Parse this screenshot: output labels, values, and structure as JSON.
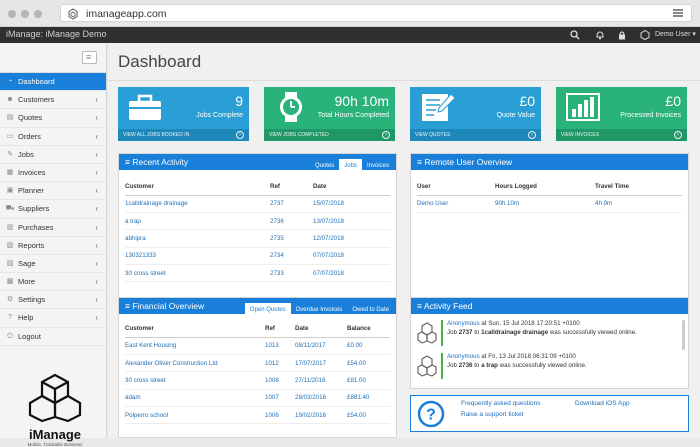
{
  "browser": {
    "url": "imanageapp.com"
  },
  "app": {
    "title": "iManage: iManage Demo",
    "user": "Demo User ▾"
  },
  "page": {
    "title": "Dashboard"
  },
  "sidebar": {
    "items": [
      {
        "label": "Dashboard",
        "icon": "dashboard-icon",
        "chevron": ""
      },
      {
        "label": "Customers",
        "icon": "customers-icon",
        "chevron": "‹"
      },
      {
        "label": "Quotes",
        "icon": "quotes-icon",
        "chevron": "‹"
      },
      {
        "label": "Orders",
        "icon": "orders-icon",
        "chevron": "‹"
      },
      {
        "label": "Jobs",
        "icon": "jobs-icon",
        "chevron": "‹"
      },
      {
        "label": "Invoices",
        "icon": "invoices-icon",
        "chevron": "‹"
      },
      {
        "label": "Planner",
        "icon": "planner-icon",
        "chevron": "‹"
      },
      {
        "label": "Suppliers",
        "icon": "suppliers-icon",
        "chevron": "‹"
      },
      {
        "label": "Purchases",
        "icon": "purchases-icon",
        "chevron": "‹"
      },
      {
        "label": "Reports",
        "icon": "reports-icon",
        "chevron": "‹"
      },
      {
        "label": "Sage",
        "icon": "sage-icon",
        "chevron": "‹"
      },
      {
        "label": "More",
        "icon": "more-icon",
        "chevron": "‹"
      },
      {
        "label": "Settings",
        "icon": "settings-icon",
        "chevron": "‹"
      },
      {
        "label": "Help",
        "icon": "help-icon",
        "chevron": "‹"
      },
      {
        "label": "Logout",
        "icon": "logout-icon",
        "chevron": ""
      }
    ],
    "brand_name": "iManage",
    "brand_tagline": "Mobile, Trackable Business"
  },
  "tiles": [
    {
      "value": "9",
      "label": "Jobs Complete",
      "footer": "VIEW ALL JOBS BOOKED IN",
      "color": "#2a9fd6"
    },
    {
      "value": "90h 10m",
      "label": "Total Hours Completed",
      "footer": "VIEW JOBS COMPLETED",
      "color": "#2ab27b"
    },
    {
      "value": "£0",
      "label": "Quote Value",
      "footer": "VIEW QUOTES",
      "color": "#2a9fd6"
    },
    {
      "value": "£0",
      "label": "Processed Invoices",
      "footer": "VIEW INVOICES",
      "color": "#2ab27b"
    }
  ],
  "recent": {
    "title": "Recent Activity",
    "tabs": [
      "Quotes",
      "Jobs",
      "Invoices"
    ],
    "headers": [
      "Customer",
      "Ref",
      "Date"
    ],
    "rows": [
      [
        "1calldrainage drainage",
        "2737",
        "15/07/2018"
      ],
      [
        "a trap",
        "2736",
        "13/07/2018"
      ],
      [
        "abhipra",
        "2735",
        "12/07/2018"
      ],
      [
        "130321333",
        "2734",
        "07/07/2018"
      ],
      [
        "30 cross street",
        "2733",
        "07/07/2018"
      ]
    ]
  },
  "remote": {
    "title": "Remote User Overview",
    "headers": [
      "User",
      "Hours Logged",
      "Travel Time"
    ],
    "rows": [
      [
        "Demo User",
        "90h 10m",
        "4h 9m"
      ]
    ]
  },
  "financial": {
    "title": "Financial Overview",
    "tabs": [
      "Open Quotes",
      "Overdue Invoices",
      "Owed to Date"
    ],
    "headers": [
      "Customer",
      "Ref",
      "Date",
      "Balance"
    ],
    "rows": [
      [
        "East Kent Housing",
        "1013",
        "08/11/2017",
        "£0.00"
      ],
      [
        "Alexander Oliver Construction Ltd",
        "1012",
        "17/07/2017",
        "£54.00"
      ],
      [
        "30 cross street",
        "1008",
        "27/11/2016",
        "£81.00"
      ],
      [
        "adam",
        "1007",
        "28/03/2016",
        "£881.40"
      ],
      [
        "Polperro school",
        "1006",
        "19/02/2016",
        "£54.00"
      ]
    ]
  },
  "feed": {
    "title": "Activity Feed",
    "items": [
      {
        "who": "Anonymous",
        "when": " at Sun, 15 Jul 2018 17:20:51 +0100",
        "l2a": "Job ",
        "job": "2737",
        "l2b": " to ",
        "cust": "1calldrainage drainage",
        "l2c": " was successfully viewed online."
      },
      {
        "who": "Anonymous",
        "when": " at Fri, 13 Jul 2018 06:31:09 +0100",
        "l2a": "Job ",
        "job": "2736",
        "l2b": " to ",
        "cust": "a trap",
        "l2c": " was successfully viewed online."
      }
    ]
  },
  "help": {
    "faq": "Frequently asked questions",
    "ios": "Download iOS App",
    "ticket": "Raise a support ticket"
  }
}
